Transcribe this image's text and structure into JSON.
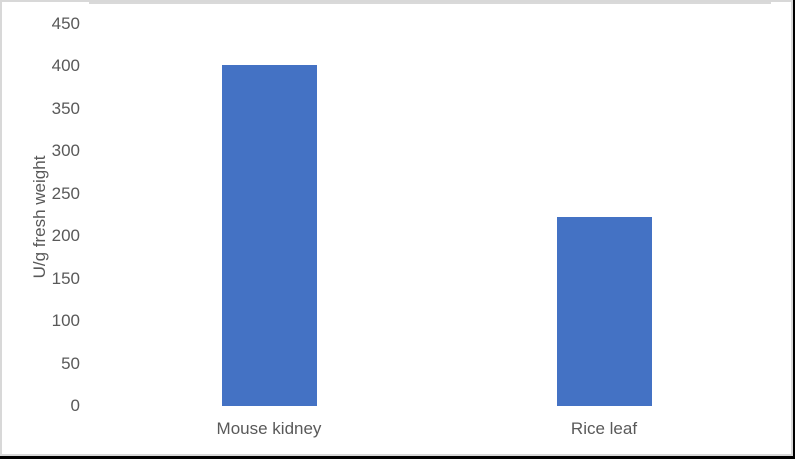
{
  "chart_data": {
    "type": "bar",
    "categories": [
      "Mouse kidney",
      "Rice leaf"
    ],
    "values": [
      402,
      223
    ],
    "title": "",
    "xlabel": "",
    "ylabel": "U/g fresh weight",
    "ylim": [
      0,
      450
    ],
    "ytick_step": 50,
    "yticks": [
      0,
      50,
      100,
      150,
      200,
      250,
      300,
      350,
      400,
      450
    ],
    "grid": false,
    "legend": "none",
    "bar_color": "#4472C4",
    "axis_line_color": "#D9D9D9",
    "text_color": "#595959",
    "background_color": "#FFFFFF",
    "border_color": "#D8D8D8"
  }
}
